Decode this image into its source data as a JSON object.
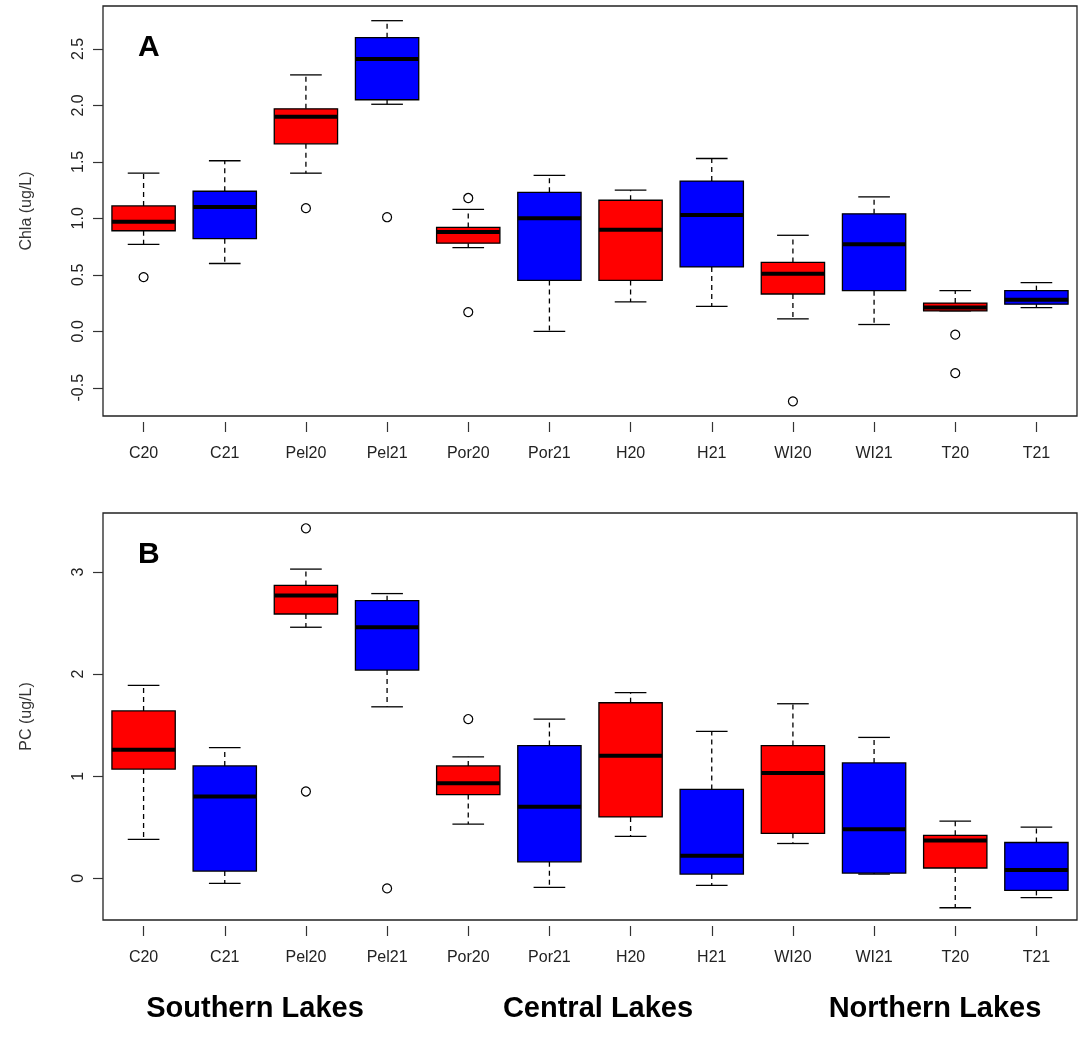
{
  "chart_data": [
    {
      "type": "box",
      "ylabel": "Chla (ug/L)",
      "annotations": [
        "A"
      ],
      "categories": [
        "C20",
        "C21",
        "Pel20",
        "Pel21",
        "Por20",
        "Por21",
        "H20",
        "H21",
        "WI20",
        "WI21",
        "T20",
        "T21"
      ],
      "colors": [
        "#ff0000",
        "#0000ff",
        "#ff0000",
        "#0000ff",
        "#ff0000",
        "#0000ff",
        "#ff0000",
        "#0000ff",
        "#ff0000",
        "#0000ff",
        "#ff0000",
        "#0000ff"
      ],
      "boxes": [
        {
          "low": 0.77,
          "q1": 0.89,
          "median": 0.97,
          "q3": 1.11,
          "high": 1.4,
          "outliers": [
            0.48
          ]
        },
        {
          "low": 0.6,
          "q1": 0.82,
          "median": 1.1,
          "q3": 1.24,
          "high": 1.51
        },
        {
          "low": 1.4,
          "q1": 1.66,
          "median": 1.9,
          "q3": 1.97,
          "high": 2.27,
          "outliers": [
            1.09
          ]
        },
        {
          "low": 2.01,
          "q1": 2.05,
          "median": 2.41,
          "q3": 2.6,
          "high": 2.75,
          "outliers": [
            1.01
          ]
        },
        {
          "low": 0.74,
          "q1": 0.78,
          "median": 0.88,
          "q3": 0.92,
          "high": 1.08,
          "outliers": [
            1.18,
            0.17
          ]
        },
        {
          "low": 0.0,
          "q1": 0.45,
          "median": 1.0,
          "q3": 1.23,
          "high": 1.38
        },
        {
          "low": 0.26,
          "q1": 0.45,
          "median": 0.9,
          "q3": 1.16,
          "high": 1.25
        },
        {
          "low": 0.22,
          "q1": 0.57,
          "median": 1.03,
          "q3": 1.33,
          "high": 1.53
        },
        {
          "low": 0.11,
          "q1": 0.33,
          "median": 0.51,
          "q3": 0.61,
          "high": 0.85,
          "outliers": [
            -0.62
          ]
        },
        {
          "low": 0.06,
          "q1": 0.36,
          "median": 0.77,
          "q3": 1.04,
          "high": 1.19
        },
        {
          "low": 0.18,
          "q1": 0.18,
          "median": 0.21,
          "q3": 0.25,
          "high": 0.36,
          "outliers": [
            -0.03,
            -0.37
          ]
        },
        {
          "low": 0.21,
          "q1": 0.24,
          "median": 0.28,
          "q3": 0.36,
          "high": 0.43
        }
      ],
      "ylim": [
        -0.75,
        2.88
      ],
      "yticks": [
        -0.5,
        {
          "value": 0,
          "label": "0.0"
        },
        0.5,
        {
          "value": 1,
          "label": "1.0"
        },
        1.5,
        {
          "value": 2,
          "label": "2.0"
        },
        2.5
      ]
    },
    {
      "type": "box",
      "ylabel": "PC (ug/L)",
      "annotations": [
        "B",
        "Southern Lakes",
        "Central Lakes",
        "Northern Lakes"
      ],
      "categories": [
        "C20",
        "C21",
        "Pel20",
        "Pel21",
        "Por20",
        "Por21",
        "H20",
        "H21",
        "WI20",
        "WI21",
        "T20",
        "T21"
      ],
      "colors": [
        "#ff0000",
        "#0000ff",
        "#ff0000",
        "#0000ff",
        "#ff0000",
        "#0000ff",
        "#ff0000",
        "#0000ff",
        "#ff0000",
        "#0000ff",
        "#ff0000",
        "#0000ff"
      ],
      "boxes": [
        {
          "low": 0.38,
          "q1": 1.07,
          "median": 1.26,
          "q3": 1.64,
          "high": 1.89
        },
        {
          "low": -0.05,
          "q1": 0.07,
          "median": 0.8,
          "q3": 1.1,
          "high": 1.28
        },
        {
          "low": 2.46,
          "q1": 2.59,
          "median": 2.77,
          "q3": 2.87,
          "high": 3.03,
          "outliers": [
            3.43,
            0.85
          ]
        },
        {
          "low": 1.68,
          "q1": 2.04,
          "median": 2.46,
          "q3": 2.72,
          "high": 2.79,
          "outliers": [
            -0.1
          ]
        },
        {
          "low": 0.53,
          "q1": 0.82,
          "median": 0.93,
          "q3": 1.1,
          "high": 1.19,
          "outliers": [
            1.56
          ]
        },
        {
          "low": -0.09,
          "q1": 0.16,
          "median": 0.7,
          "q3": 1.3,
          "high": 1.56
        },
        {
          "low": 0.41,
          "q1": 0.6,
          "median": 1.2,
          "q3": 1.72,
          "high": 1.82
        },
        {
          "low": -0.07,
          "q1": 0.04,
          "median": 0.22,
          "q3": 0.87,
          "high": 1.44
        },
        {
          "low": 0.34,
          "q1": 0.44,
          "median": 1.03,
          "q3": 1.3,
          "high": 1.71
        },
        {
          "low": 0.04,
          "q1": 0.05,
          "median": 0.48,
          "q3": 1.13,
          "high": 1.38
        },
        {
          "low": -0.29,
          "q1": 0.1,
          "median": 0.37,
          "q3": 0.42,
          "high": 0.56
        },
        {
          "low": -0.19,
          "q1": -0.12,
          "median": 0.08,
          "q3": 0.35,
          "high": 0.5
        }
      ],
      "ylim": [
        -0.41,
        3.58
      ],
      "yticks": [
        0,
        1,
        2,
        3
      ]
    }
  ]
}
